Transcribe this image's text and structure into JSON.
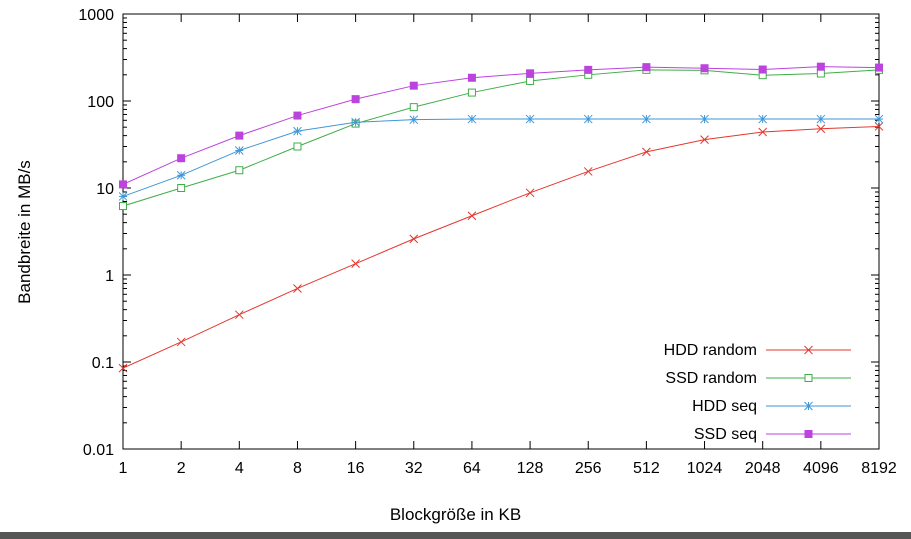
{
  "window": {
    "edge_color": "#565656"
  },
  "chart_data": {
    "type": "line",
    "title": "",
    "xlabel": "Blockgröße in KB",
    "ylabel": "Bandbreite in MB/s",
    "x_scale": "log2",
    "y_scale": "log10",
    "xlim": [
      1,
      8192
    ],
    "ylim": [
      0.01,
      1000
    ],
    "grid": false,
    "legend_position": "bottom-right-inside",
    "categories": [
      1,
      2,
      4,
      8,
      16,
      32,
      64,
      128,
      256,
      512,
      1024,
      2048,
      4096,
      8192
    ],
    "y_ticks": [
      0.01,
      0.1,
      1,
      10,
      100,
      1000
    ],
    "y_tick_labels": [
      "0.01",
      "0.1",
      "1",
      "10",
      "100",
      "1000"
    ],
    "series": [
      {
        "name": "HDD random",
        "color": "#e4372e",
        "marker": "cross",
        "values": [
          0.085,
          0.17,
          0.35,
          0.7,
          1.35,
          2.6,
          4.8,
          8.8,
          15.5,
          26,
          36,
          44,
          48,
          51
        ]
      },
      {
        "name": "SSD random",
        "color": "#3fae49",
        "marker": "open-square",
        "values": [
          6.2,
          10,
          16,
          30,
          55,
          85,
          125,
          170,
          200,
          228,
          225,
          198,
          207,
          228
        ]
      },
      {
        "name": "HDD seq",
        "color": "#3e97d9",
        "marker": "asterisk",
        "values": [
          8,
          14,
          27,
          45,
          57,
          61,
          62,
          62,
          62,
          62,
          62,
          62,
          62,
          62
        ]
      },
      {
        "name": "SSD seq",
        "color": "#bc43dd",
        "marker": "filled-square",
        "values": [
          11,
          22,
          40,
          68,
          105,
          150,
          185,
          208,
          228,
          245,
          238,
          230,
          248,
          242
        ]
      }
    ]
  }
}
